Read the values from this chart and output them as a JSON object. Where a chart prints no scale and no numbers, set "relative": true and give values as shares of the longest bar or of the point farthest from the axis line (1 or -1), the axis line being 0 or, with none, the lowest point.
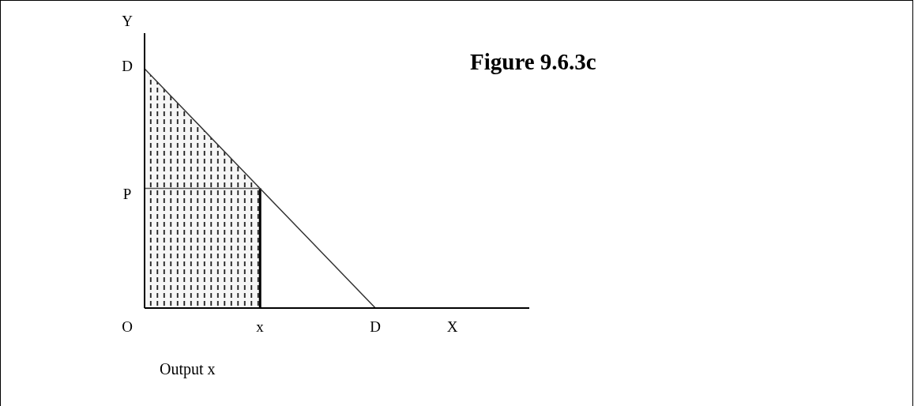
{
  "chart_data": {
    "type": "line",
    "title": "Figure 9.6.3c",
    "xlabel": "Output x",
    "ylabel": "Y",
    "relative": true,
    "categories": [
      null,
      null,
      null,
      "x",
      null,
      null,
      "D",
      null,
      "X",
      null,
      null
    ],
    "series": [
      {
        "type": "area",
        "color": "#000000",
        "values": [
          1,
          0.833,
          0.667,
          0.5,
          null,
          null,
          null,
          null,
          null,
          null,
          null
        ]
      },
      {
        "color": "#333333",
        "values": [
          1,
          0.833,
          0.667,
          0.5,
          0.333,
          0.167,
          0,
          null,
          null,
          null,
          null
        ]
      },
      {
        "color": "#555555",
        "values": [
          0.5,
          0.5,
          0.5,
          0.5,
          null,
          null,
          null,
          null,
          null,
          null,
          null
        ]
      },
      {
        "type": "bar",
        "color": "#000000",
        "values": [
          null,
          null,
          null,
          0.5,
          null,
          null,
          null,
          null,
          null,
          null,
          null
        ]
      }
    ],
    "annotations": [
      "D",
      "P",
      "O"
    ]
  }
}
